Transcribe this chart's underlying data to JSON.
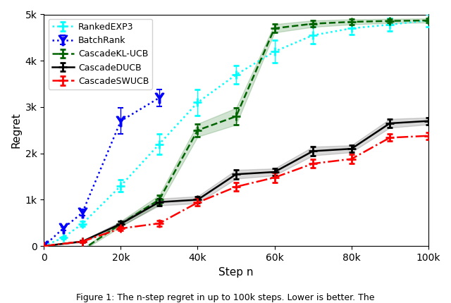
{
  "title": "",
  "xlabel": "Step n",
  "ylabel": "Regret",
  "xlim": [
    0,
    100000
  ],
  "ylim": [
    0,
    5000
  ],
  "xticks": [
    0,
    20000,
    40000,
    60000,
    80000,
    100000
  ],
  "xticklabels": [
    "0",
    "20k",
    "40k",
    "60k",
    "80k",
    "100k"
  ],
  "yticks": [
    0,
    1000,
    2000,
    3000,
    4000,
    5000
  ],
  "yticklabels": [
    "0",
    "1k",
    "2k",
    "3k",
    "4k",
    "5k"
  ],
  "series": [
    {
      "label": "RankedEXP3",
      "color": "#00ffff",
      "linestyle": "dotted",
      "marker": "+",
      "markersize": 9,
      "markeredgewidth": 2.0,
      "linewidth": 1.8,
      "x": [
        0,
        5000,
        10000,
        20000,
        30000,
        40000,
        50000,
        60000,
        70000,
        80000,
        90000,
        100000
      ],
      "y": [
        0,
        180,
        480,
        1300,
        2200,
        3100,
        3700,
        4200,
        4550,
        4700,
        4780,
        4870
      ],
      "yerr": [
        0,
        20,
        50,
        130,
        220,
        280,
        200,
        240,
        180,
        140,
        130,
        130
      ],
      "has_fill": false
    },
    {
      "label": "BatchRank",
      "color": "blue",
      "linestyle": "dotted",
      "marker": "$\\Upsilon$",
      "markersize": 10,
      "markeredgewidth": 1.5,
      "linewidth": 1.8,
      "x": [
        0,
        5000,
        10000,
        20000,
        30000
      ],
      "y": [
        0,
        380,
        720,
        2700,
        3200
      ],
      "yerr": [
        0,
        40,
        70,
        280,
        180
      ],
      "has_fill": false
    },
    {
      "label": "CascadeKL-UCB",
      "color": "#006400",
      "linestyle": "dashed",
      "marker": "+",
      "markersize": 9,
      "markeredgewidth": 2.0,
      "linewidth": 1.8,
      "x": [
        0,
        10000,
        20000,
        30000,
        40000,
        50000,
        60000,
        70000,
        80000,
        90000,
        100000
      ],
      "y": [
        0,
        -80,
        480,
        1000,
        2500,
        2800,
        4700,
        4800,
        4840,
        4860,
        4870
      ],
      "yerr": [
        0,
        20,
        60,
        100,
        140,
        180,
        90,
        70,
        55,
        45,
        45
      ],
      "has_fill": true,
      "fill_alpha": 0.18
    },
    {
      "label": "CascadeDUCB",
      "color": "black",
      "linestyle": "solid",
      "marker": "+",
      "markersize": 9,
      "markeredgewidth": 2.0,
      "linewidth": 1.8,
      "x": [
        0,
        10000,
        20000,
        30000,
        40000,
        50000,
        60000,
        70000,
        80000,
        90000,
        100000
      ],
      "y": [
        0,
        100,
        480,
        950,
        1000,
        1550,
        1600,
        2050,
        2100,
        2650,
        2700
      ],
      "yerr": [
        0,
        20,
        50,
        75,
        75,
        95,
        75,
        95,
        75,
        95,
        75
      ],
      "has_fill": true,
      "fill_alpha": 0.15
    },
    {
      "label": "CascadeSWUCB",
      "color": "red",
      "linestyle": "dashdot",
      "marker": "+",
      "markersize": 9,
      "markeredgewidth": 2.0,
      "linewidth": 1.8,
      "x": [
        0,
        10000,
        20000,
        30000,
        40000,
        50000,
        60000,
        70000,
        80000,
        90000,
        100000
      ],
      "y": [
        0,
        100,
        380,
        490,
        940,
        1280,
        1480,
        1780,
        1880,
        2340,
        2380
      ],
      "yerr": [
        0,
        18,
        38,
        55,
        75,
        95,
        110,
        95,
        95,
        75,
        75
      ],
      "has_fill": false
    }
  ],
  "legend_loc": "upper left",
  "figsize": [
    6.4,
    4.3
  ],
  "dpi": 100,
  "caption": "Figure 1: The n-step regret in up to 100k steps. Lower is better. The"
}
